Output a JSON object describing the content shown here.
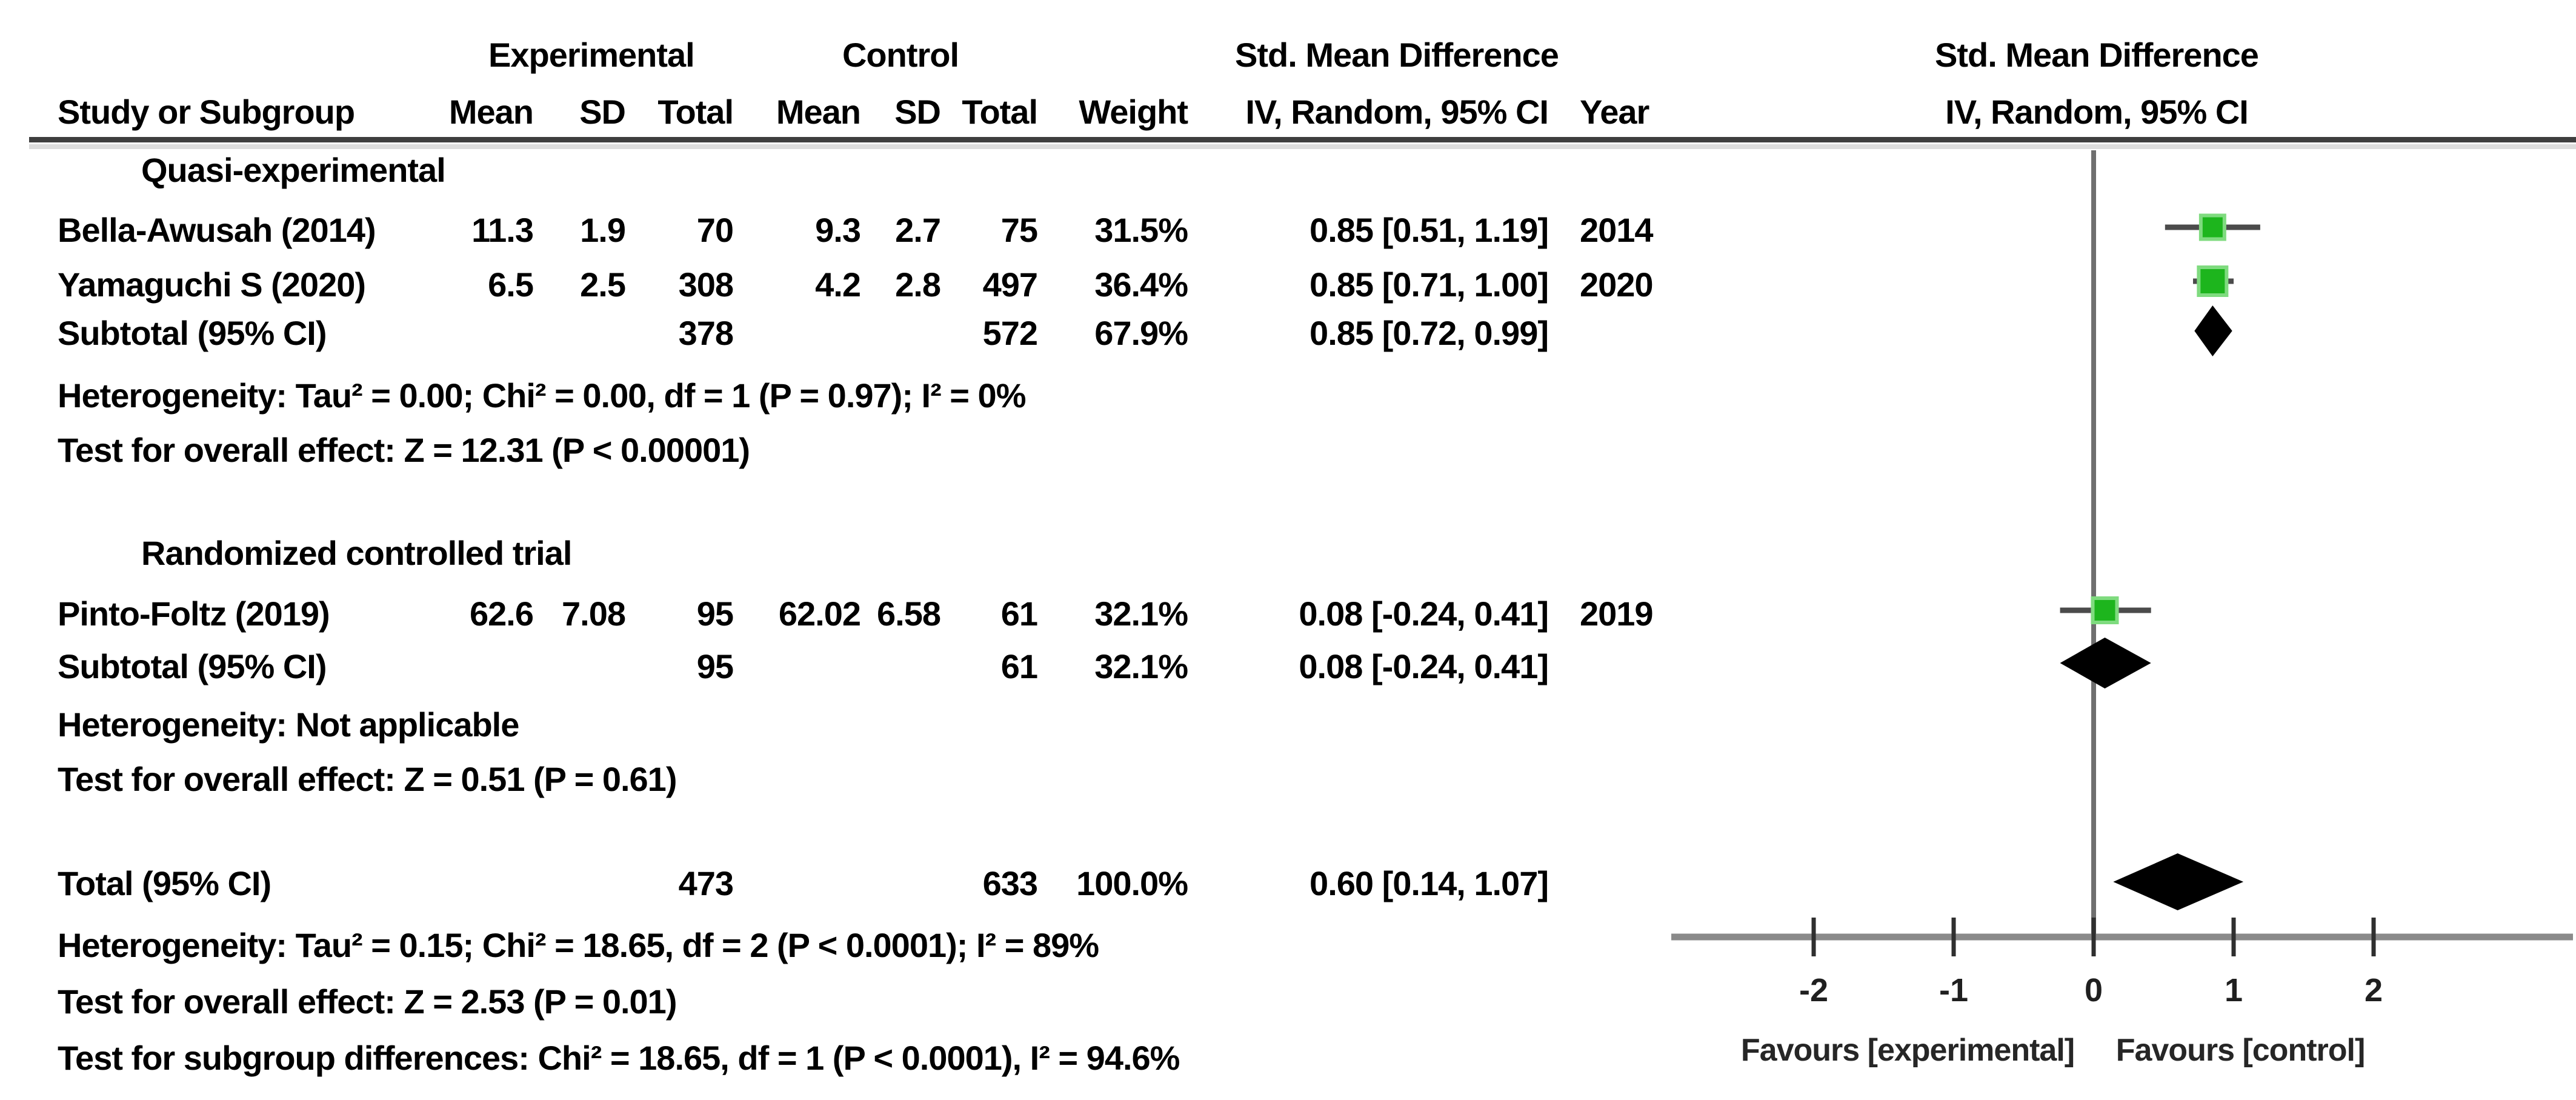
{
  "colors": {
    "green": "#1db51d",
    "green_halo": "#7fdb7f",
    "ci_line": "#4b4b4b",
    "diamond": "#000000",
    "axis": "#8a8a8a",
    "zero_line": "#6f6f6f",
    "tick": "#2f2f2f",
    "separator_dark": "#3e3e3e",
    "separator_light": "#dcdcdc"
  },
  "header": {
    "experimental": "Experimental",
    "control": "Control",
    "smd_left": "Std. Mean Difference",
    "col_study": "Study or Subgroup",
    "col_mean1": "Mean",
    "col_sd1": "SD",
    "col_total1": "Total",
    "col_mean2": "Mean",
    "col_sd2": "SD",
    "col_total2": "Total",
    "col_weight": "Weight",
    "col_ci": "IV, Random, 95% CI",
    "col_year": "Year",
    "plot_title": "Std. Mean Difference",
    "plot_subtitle": "IV, Random, 95% CI"
  },
  "chart_data": {
    "type": "forest",
    "effect_measure": "Std. Mean Difference",
    "model": "IV, Random, 95% CI",
    "axis": {
      "min": -2.5,
      "max": 2.5,
      "ticks": [
        -2,
        -1,
        0,
        1,
        2
      ],
      "favours_left": "Favours [experimental]",
      "favours_right": "Favours [control]"
    },
    "subgroups": [
      {
        "label": "Quasi-experimental",
        "studies": [
          {
            "name": "Bella-Awusah (2014)",
            "mean1": "11.3",
            "sd1": "1.9",
            "total1": "70",
            "mean2": "9.3",
            "sd2": "2.7",
            "total2": "75",
            "weight": "31.5%",
            "weight_pct": 31.5,
            "ci_text": "0.85 [0.51, 1.19]",
            "year": "2014",
            "est": 0.85,
            "lo": 0.51,
            "hi": 1.19
          },
          {
            "name": "Yamaguchi S (2020)",
            "mean1": "6.5",
            "sd1": "2.5",
            "total1": "308",
            "mean2": "4.2",
            "sd2": "2.8",
            "total2": "497",
            "weight": "36.4%",
            "weight_pct": 36.4,
            "ci_text": "0.85 [0.71, 1.00]",
            "year": "2020",
            "est": 0.85,
            "lo": 0.71,
            "hi": 1.0
          }
        ],
        "subtotal": {
          "label": "Subtotal (95% CI)",
          "total1": "378",
          "total2": "572",
          "weight": "67.9%",
          "ci_text": "0.85 [0.72, 0.99]",
          "est": 0.85,
          "lo": 0.72,
          "hi": 0.99
        },
        "heterogeneity": "Heterogeneity: Tau² = 0.00; Chi² = 0.00, df = 1 (P = 0.97); I² = 0%",
        "overall_effect": "Test for overall effect: Z = 12.31 (P < 0.00001)"
      },
      {
        "label": "Randomized controlled trial",
        "studies": [
          {
            "name": "Pinto-Foltz (2019)",
            "mean1": "62.6",
            "sd1": "7.08",
            "total1": "95",
            "mean2": "62.02",
            "sd2": "6.58",
            "total2": "61",
            "weight": "32.1%",
            "weight_pct": 32.1,
            "ci_text": "0.08 [-0.24, 0.41]",
            "year": "2019",
            "est": 0.08,
            "lo": -0.24,
            "hi": 0.41
          }
        ],
        "subtotal": {
          "label": "Subtotal (95% CI)",
          "total1": "95",
          "total2": "61",
          "weight": "32.1%",
          "ci_text": "0.08 [-0.24, 0.41]",
          "est": 0.08,
          "lo": -0.24,
          "hi": 0.41
        },
        "heterogeneity": "Heterogeneity: Not applicable",
        "overall_effect": "Test for overall effect: Z = 0.51 (P = 0.61)"
      }
    ],
    "total": {
      "label": "Total (95% CI)",
      "total1": "473",
      "total2": "633",
      "weight": "100.0%",
      "ci_text": "0.60 [0.14, 1.07]",
      "est": 0.6,
      "lo": 0.14,
      "hi": 1.07
    },
    "footer": {
      "heterogeneity": "Heterogeneity: Tau² = 0.15; Chi² = 18.65, df = 2 (P < 0.0001); I² = 89%",
      "overall_effect": "Test for overall effect: Z = 2.53 (P = 0.01)",
      "subgroup_differences": "Test for subgroup differences: Chi² = 18.65, df = 1 (P < 0.0001), I² = 94.6%"
    }
  }
}
